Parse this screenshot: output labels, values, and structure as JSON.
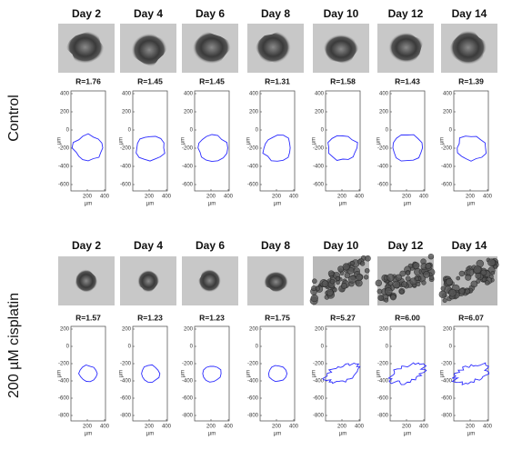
{
  "rows": [
    {
      "label": "Control",
      "yticks": [
        "400",
        "200",
        "0",
        "-200",
        "-400",
        "-600"
      ],
      "panels": [
        {
          "title": "Day 2",
          "ratio": "R=1.76"
        },
        {
          "title": "Day 4",
          "ratio": "R=1.45"
        },
        {
          "title": "Day 6",
          "ratio": "R=1.45"
        },
        {
          "title": "Day 8",
          "ratio": "R=1.31"
        },
        {
          "title": "Day 10",
          "ratio": "R=1.58"
        },
        {
          "title": "Day 12",
          "ratio": "R=1.43"
        },
        {
          "title": "Day 14",
          "ratio": "R=1.39"
        }
      ]
    },
    {
      "label": "200 µM cisplatin",
      "yticks": [
        "200",
        "0",
        "-200",
        "-400",
        "-600",
        "-800"
      ],
      "panels": [
        {
          "title": "Day 2",
          "ratio": "R=1.57"
        },
        {
          "title": "Day 4",
          "ratio": "R=1.23"
        },
        {
          "title": "Day 6",
          "ratio": "R=1.23"
        },
        {
          "title": "Day 8",
          "ratio": "R=1.75"
        },
        {
          "title": "Day 10",
          "ratio": "R=5.27"
        },
        {
          "title": "Day 12",
          "ratio": "R=6.00"
        },
        {
          "title": "Day 14",
          "ratio": "R=6.07"
        }
      ]
    }
  ],
  "xticks": [
    "200",
    "400"
  ],
  "xlabel": "µm",
  "ylabel": "µm"
}
